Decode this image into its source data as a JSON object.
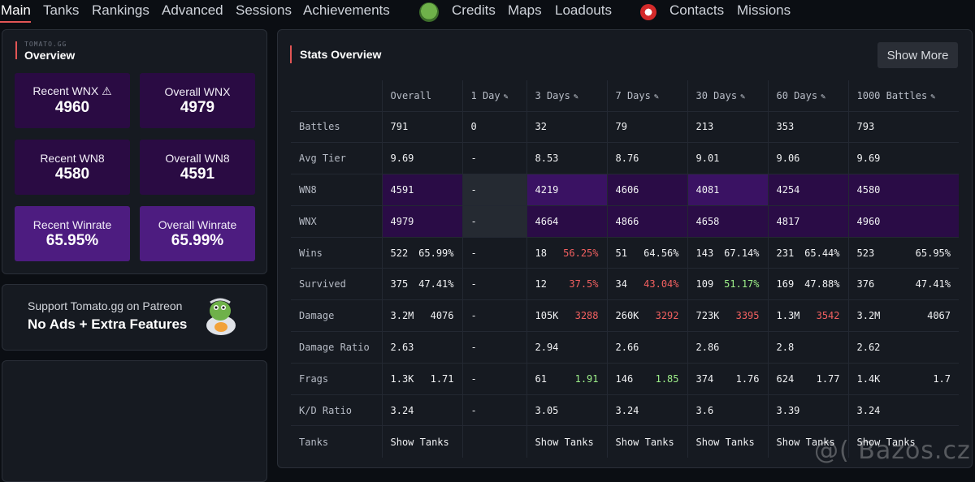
{
  "nav": {
    "items": [
      "Main",
      "Tanks",
      "Rankings",
      "Advanced",
      "Sessions",
      "Achievements",
      "Credits",
      "Maps",
      "Loadouts",
      "Contacts",
      "Missions"
    ]
  },
  "brand": {
    "small": "TOMATO.GG",
    "title": "Overview"
  },
  "overview_cards": [
    {
      "label": "Recent WNX ⚠",
      "value": "4960"
    },
    {
      "label": "Overall WNX",
      "value": "4979"
    },
    {
      "label": "Recent WN8",
      "value": "4580"
    },
    {
      "label": "Overall WN8",
      "value": "4591"
    },
    {
      "label": "Recent Winrate",
      "value": "65.95%"
    },
    {
      "label": "Overall Winrate",
      "value": "65.99%"
    }
  ],
  "patreon": {
    "line1": "Support Tomato.gg on Patreon",
    "line2": "No Ads + Extra Features"
  },
  "stats": {
    "title": "Stats Overview",
    "show_more": "Show More",
    "columns": [
      "Overall",
      "1 Day",
      "3 Days",
      "7 Days",
      "30 Days",
      "60 Days",
      "1000 Battles"
    ],
    "rows": {
      "battles": {
        "label": "Battles",
        "cells": [
          "791",
          "0",
          "32",
          "79",
          "213",
          "353",
          "793"
        ]
      },
      "avg_tier": {
        "label": "Avg Tier",
        "cells": [
          "9.69",
          "-",
          "8.53",
          "8.76",
          "9.01",
          "9.06",
          "9.69"
        ]
      },
      "wn8": {
        "label": "WN8",
        "cells": [
          "4591",
          "-",
          "4219",
          "4606",
          "4081",
          "4254",
          "4580"
        ]
      },
      "wnx": {
        "label": "WNX",
        "cells": [
          "4979",
          "-",
          "4664",
          "4866",
          "4658",
          "4817",
          "4960"
        ]
      },
      "wins": {
        "label": "Wins",
        "cells": [
          [
            "522",
            "65.99%"
          ],
          [
            "-",
            ""
          ],
          [
            "18",
            "56.25%"
          ],
          [
            "51",
            "64.56%"
          ],
          [
            "143",
            "67.14%"
          ],
          [
            "231",
            "65.44%"
          ],
          [
            "523",
            "65.95%"
          ]
        ]
      },
      "survived": {
        "label": "Survived",
        "cells": [
          [
            "375",
            "47.41%"
          ],
          [
            "-",
            ""
          ],
          [
            "12",
            "37.5%"
          ],
          [
            "34",
            "43.04%"
          ],
          [
            "109",
            "51.17%"
          ],
          [
            "169",
            "47.88%"
          ],
          [
            "376",
            "47.41%"
          ]
        ]
      },
      "damage": {
        "label": "Damage",
        "cells": [
          [
            "3.2M",
            "4076"
          ],
          [
            "-",
            ""
          ],
          [
            "105K",
            "3288"
          ],
          [
            "260K",
            "3292"
          ],
          [
            "723K",
            "3395"
          ],
          [
            "1.3M",
            "3542"
          ],
          [
            "3.2M",
            "4067"
          ]
        ]
      },
      "damage_ratio": {
        "label": "Damage Ratio",
        "cells": [
          "2.63",
          "-",
          "2.94",
          "2.66",
          "2.86",
          "2.8",
          "2.62"
        ]
      },
      "frags": {
        "label": "Frags",
        "cells": [
          [
            "1.3K",
            "1.71"
          ],
          [
            "-",
            ""
          ],
          [
            "61",
            "1.91"
          ],
          [
            "146",
            "1.85"
          ],
          [
            "374",
            "1.76"
          ],
          [
            "624",
            "1.77"
          ],
          [
            "1.4K",
            "1.7"
          ]
        ]
      },
      "kd_ratio": {
        "label": "K/D Ratio",
        "cells": [
          "3.24",
          "-",
          "3.05",
          "3.24",
          "3.6",
          "3.39",
          "3.24"
        ]
      },
      "tanks": {
        "label": "Tanks",
        "link": "Show Tanks"
      }
    }
  },
  "colors": {
    "accent": "#e25555",
    "negative": "#f26060",
    "positive": "#9ef08a",
    "link": "#6ea4e6"
  },
  "watermark": "@( Bazos.cz"
}
